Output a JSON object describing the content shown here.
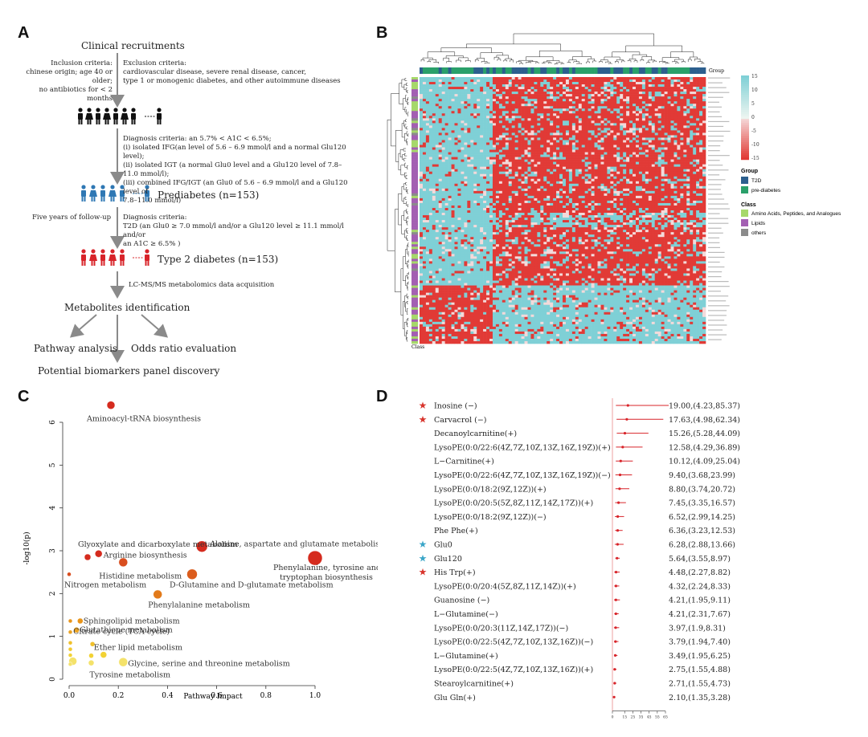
{
  "panels": {
    "a": "A",
    "b": "B",
    "c": "C",
    "d": "D"
  },
  "flow": {
    "recruit": "Clinical recruitments",
    "inclusion": "Inclusion criteria:\nchinese origin; age 40 or older;\nno antibiotics for < 2 months",
    "exclusion": "Exclusion criteria:\ncardiovascular disease, severe renal disease, cancer,\ntype 1 or monogenic diabetes, and other autoimmune diseases",
    "diagnosis1": "Diagnosis criteria:  an 5.7% < A1C < 6.5%;\n(i) isolated IFG(an level of 5.6 – 6.9 mmol/l and a normal Glu120 level);\n(ii) isolated IGT (a normal Glu0 level and a Glu120 level of 7.8–11.0 mmol/l);\n(iii) combined IFG/IGT (an Glu0 of 5.6 – 6.9 mmol/l and a Glu120 level of\n       7.8–11.0 mmol/l)",
    "prediabetes": "Prediabetes (n=153)",
    "followup": "Five years of follow-up",
    "diagnosis2": "Diagnosis criteria:\nT2D (an Glu0 ≥ 7.0 mmol/l and/or a Glu120 level ≥ 11.1 mmol/l and/or\n       an A1C ≥ 6.5% )",
    "t2d": "Type 2 diabetes (n=153)",
    "lcms": "LC-MS/MS metabolomics data acquisition",
    "identification": "Metabolites identification",
    "pathway": "Pathway analysis",
    "odds": "Odds ratio evaluation",
    "biomarkers": "Potential biomarkers panel discovery",
    "colors": {
      "black": "#111111",
      "blue": "#2f78b4",
      "red": "#d8242a",
      "arrow": "#8a8a8a"
    }
  },
  "heatmap": {
    "group_label": "Group",
    "class_label": "Class",
    "colorbar_ticks": [
      "15",
      "10",
      "5",
      "0",
      "-5",
      "-10",
      "-15"
    ],
    "legend": {
      "group_title": "Group",
      "group_items": [
        {
          "label": "T2D",
          "color": "#2c5f8e"
        },
        {
          "label": "pre-diabetes",
          "color": "#2aa06a"
        }
      ],
      "class_title": "Class",
      "class_items": [
        {
          "label": "Amino Acids, Peptides, and Analogues",
          "color": "#a6d86a"
        },
        {
          "label": "Lipids",
          "color": "#a35fb2"
        },
        {
          "label": "others",
          "color": "#8b8b8b"
        }
      ]
    },
    "colors": {
      "high": "#7fd0d6",
      "low": "#e13a36",
      "mid": "#f3dada"
    }
  },
  "chart_data": [
    {
      "type": "scatter",
      "title": "",
      "xlabel": "Pathway Impact",
      "ylabel": "-log10(p)",
      "xlim": [
        0,
        1.0
      ],
      "ylim": [
        0,
        6.3
      ],
      "xticks": [
        "0.0",
        "0.2",
        "0.4",
        "0.6",
        "0.8",
        "1.0"
      ],
      "yticks": [
        "0",
        "1",
        "2",
        "3",
        "4",
        "5",
        "6"
      ],
      "points": [
        {
          "name": "Aminoacyl-tRNA biosynthesis",
          "x": 0.17,
          "y": 6.4,
          "size": 5,
          "color": "#d52b1e"
        },
        {
          "name": "Glyoxylate and dicarboxylate metabolism",
          "x": 0.075,
          "y": 2.85,
          "size": 4,
          "color": "#d52b1e"
        },
        {
          "name": "Arginine biosynthesis",
          "x": 0.12,
          "y": 2.93,
          "size": 4.5,
          "color": "#d52b1e"
        },
        {
          "name": "Alanine, aspartate and glutamate metabolism",
          "x": 0.54,
          "y": 3.1,
          "size": 7,
          "color": "#d52b1e"
        },
        {
          "name": "Histidine metabolism",
          "x": 0.22,
          "y": 2.73,
          "size": 5.5,
          "color": "#d94e1f"
        },
        {
          "name": "Phenylalanine, tyrosine and tryptophan biosynthesis",
          "x": 1.0,
          "y": 2.83,
          "size": 9,
          "color": "#d52b1e"
        },
        {
          "name": "Nitrogen metabolism",
          "x": 0.0,
          "y": 2.45,
          "size": 2.5,
          "color": "#d94e1f"
        },
        {
          "name": "D-Glutamine and D-glutamate metabolism",
          "x": 0.5,
          "y": 2.45,
          "size": 6.5,
          "color": "#db5d1d"
        },
        {
          "name": "Phenylalanine metabolism",
          "x": 0.36,
          "y": 1.98,
          "size": 5.5,
          "color": "#e27a1a"
        },
        {
          "name": "Sphingolipid metabolism",
          "x": 0.045,
          "y": 1.36,
          "size": 3.5,
          "color": "#e9951a"
        },
        {
          "name": "",
          "x": 0.005,
          "y": 1.36,
          "size": 2.5,
          "color": "#e9951a"
        },
        {
          "name": "Glutathione metabolism",
          "x": 0.03,
          "y": 1.15,
          "size": 3.5,
          "color": "#eba322"
        },
        {
          "name": "",
          "x": 0.005,
          "y": 1.1,
          "size": 2.5,
          "color": "#eba322"
        },
        {
          "name": "",
          "x": 0.005,
          "y": 0.85,
          "size": 2.5,
          "color": "#f0c02a"
        },
        {
          "name": "Citrate cycle (TCA cycle)",
          "x": 0.095,
          "y": 0.82,
          "size": 3,
          "color": "#f0c02a"
        },
        {
          "name": "",
          "x": 0.005,
          "y": 0.7,
          "size": 2.5,
          "color": "#f2c92d"
        },
        {
          "name": "",
          "x": 0.005,
          "y": 0.56,
          "size": 2.5,
          "color": "#f2d234"
        },
        {
          "name": "Ether lipid metabolism",
          "x": 0.14,
          "y": 0.57,
          "size": 4,
          "color": "#f2d234"
        },
        {
          "name": "",
          "x": 0.09,
          "y": 0.55,
          "size": 3,
          "color": "#f2d234"
        },
        {
          "name": "Glycine, serine and threonine metabolism",
          "x": 0.22,
          "y": 0.4,
          "size": 5.5,
          "color": "#f4e26a"
        },
        {
          "name": "Tyrosine metabolism",
          "x": 0.09,
          "y": 0.38,
          "size": 3.5,
          "color": "#f4e26a"
        },
        {
          "name": "",
          "x": 0.015,
          "y": 0.42,
          "size": 5,
          "color": "#f4e26a"
        },
        {
          "name": "",
          "x": 0.005,
          "y": 0.35,
          "size": 2.5,
          "color": "#f4e26a"
        }
      ]
    },
    {
      "type": "forest",
      "title": "",
      "xlim": [
        0,
        65
      ],
      "xticks": [
        "0",
        "15",
        "25",
        "35",
        "45",
        "55",
        "65"
      ],
      "rows": [
        {
          "label": "Inosine (−)",
          "star": "#d8342c",
          "or": 19.0,
          "lo": 4.23,
          "hi": 85.37,
          "text": "19.00,(4.23,85.37)"
        },
        {
          "label": "Carvacrol (−)",
          "star": "#d8342c",
          "or": 17.63,
          "lo": 4.98,
          "hi": 62.34,
          "text": "17.63,(4.98,62.34)"
        },
        {
          "label": "Decanoylcarnitine(+)",
          "star": "",
          "or": 15.26,
          "lo": 5.28,
          "hi": 44.09,
          "text": "15.26,(5.28,44.09)"
        },
        {
          "label": "LysoPE(0:0/22:6(4Z,7Z,10Z,13Z,16Z,19Z))(+)",
          "star": "",
          "or": 12.58,
          "lo": 4.29,
          "hi": 36.89,
          "text": "12.58,(4.29,36.89)"
        },
        {
          "label": "L−Carnitine(+)",
          "star": "",
          "or": 10.12,
          "lo": 4.09,
          "hi": 25.04,
          "text": "10.12,(4.09,25.04)"
        },
        {
          "label": "LysoPE(0:0/22:6(4Z,7Z,10Z,13Z,16Z,19Z))(−)",
          "star": "",
          "or": 9.4,
          "lo": 3.68,
          "hi": 23.99,
          "text": "9.40,(3.68,23.99)"
        },
        {
          "label": "LysoPE(0:0/18:2(9Z,12Z))(+)",
          "star": "",
          "or": 8.8,
          "lo": 3.74,
          "hi": 20.72,
          "text": "8.80,(3.74,20.72)"
        },
        {
          "label": "LysoPE(0:0/20:5(5Z,8Z,11Z,14Z,17Z))(+)",
          "star": "",
          "or": 7.45,
          "lo": 3.35,
          "hi": 16.57,
          "text": "7.45,(3.35,16.57)"
        },
        {
          "label": "LysoPE(0:0/18:2(9Z,12Z))(−)",
          "star": "",
          "or": 6.52,
          "lo": 2.99,
          "hi": 14.25,
          "text": "6.52,(2.99,14.25)"
        },
        {
          "label": "Phe Phe(+)",
          "star": "",
          "or": 6.36,
          "lo": 3.23,
          "hi": 12.53,
          "text": "6.36,(3.23,12.53)"
        },
        {
          "label": "Glu0",
          "star": "#3aa6c8",
          "or": 6.28,
          "lo": 2.88,
          "hi": 13.66,
          "text": "6.28,(2.88,13.66)"
        },
        {
          "label": "Glu120",
          "star": "#3aa6c8",
          "or": 5.64,
          "lo": 3.55,
          "hi": 8.97,
          "text": "5.64,(3.55,8.97)"
        },
        {
          "label": "His Trp(+)",
          "star": "#d8342c",
          "or": 4.48,
          "lo": 2.27,
          "hi": 8.82,
          "text": "4.48,(2.27,8.82)"
        },
        {
          "label": "LysoPE(0:0/20:4(5Z,8Z,11Z,14Z))(+)",
          "star": "",
          "or": 4.32,
          "lo": 2.24,
          "hi": 8.33,
          "text": "4.32,(2.24,8.33)"
        },
        {
          "label": "Guanosine (−)",
          "star": "",
          "or": 4.21,
          "lo": 1.95,
          "hi": 9.11,
          "text": "4.21,(1.95,9.11)"
        },
        {
          "label": "L−Glutamine(−)",
          "star": "",
          "or": 4.21,
          "lo": 2.31,
          "hi": 7.67,
          "text": "4.21,(2.31,7.67)"
        },
        {
          "label": "LysoPE(0:0/20:3(11Z,14Z,17Z))(−)",
          "star": "",
          "or": 3.97,
          "lo": 1.9,
          "hi": 8.31,
          "text": "3.97,(1.9,8.31)"
        },
        {
          "label": "LysoPE(0:0/22:5(4Z,7Z,10Z,13Z,16Z))(−)",
          "star": "",
          "or": 3.79,
          "lo": 1.94,
          "hi": 7.4,
          "text": "3.79,(1.94,7.40)"
        },
        {
          "label": "L−Glutamine(+)",
          "star": "",
          "or": 3.49,
          "lo": 1.95,
          "hi": 6.25,
          "text": "3.49,(1.95,6.25)"
        },
        {
          "label": "LysoPE(0:0/22:5(4Z,7Z,10Z,13Z,16Z))(+)",
          "star": "",
          "or": 2.75,
          "lo": 1.55,
          "hi": 4.88,
          "text": "2.75,(1.55,4.88)"
        },
        {
          "label": "Stearoylcarnitine(+)",
          "star": "",
          "or": 2.71,
          "lo": 1.55,
          "hi": 4.73,
          "text": "2.71,(1.55,4.73)"
        },
        {
          "label": "Glu Gln(+)",
          "star": "",
          "or": 2.1,
          "lo": 1.35,
          "hi": 3.28,
          "text": "2.10,(1.35,3.28)"
        }
      ]
    }
  ]
}
